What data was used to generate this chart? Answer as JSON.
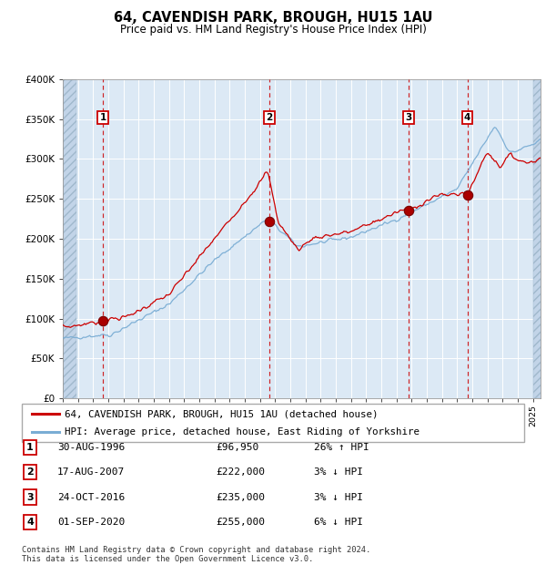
{
  "title": "64, CAVENDISH PARK, BROUGH, HU15 1AU",
  "subtitle": "Price paid vs. HM Land Registry's House Price Index (HPI)",
  "red_label": "64, CAVENDISH PARK, BROUGH, HU15 1AU (detached house)",
  "blue_label": "HPI: Average price, detached house, East Riding of Yorkshire",
  "footer": "Contains HM Land Registry data © Crown copyright and database right 2024.\nThis data is licensed under the Open Government Licence v3.0.",
  "sales": [
    {
      "num": 1,
      "date": "30-AUG-1996",
      "price": 96950,
      "pct": "26%",
      "dir": "↑",
      "year": 1996.66
    },
    {
      "num": 2,
      "date": "17-AUG-2007",
      "price": 222000,
      "pct": "3%",
      "dir": "↓",
      "year": 2007.62
    },
    {
      "num": 3,
      "date": "24-OCT-2016",
      "price": 235000,
      "pct": "3%",
      "dir": "↓",
      "year": 2016.81
    },
    {
      "num": 4,
      "date": "01-SEP-2020",
      "price": 255000,
      "pct": "6%",
      "dir": "↓",
      "year": 2020.67
    }
  ],
  "ylim": [
    0,
    400000
  ],
  "xlim_start": 1994.0,
  "xlim_end": 2025.5,
  "bg_color": "#dce9f5",
  "red_color": "#cc0000",
  "blue_color": "#7aadd4",
  "grid_color": "#ffffff"
}
